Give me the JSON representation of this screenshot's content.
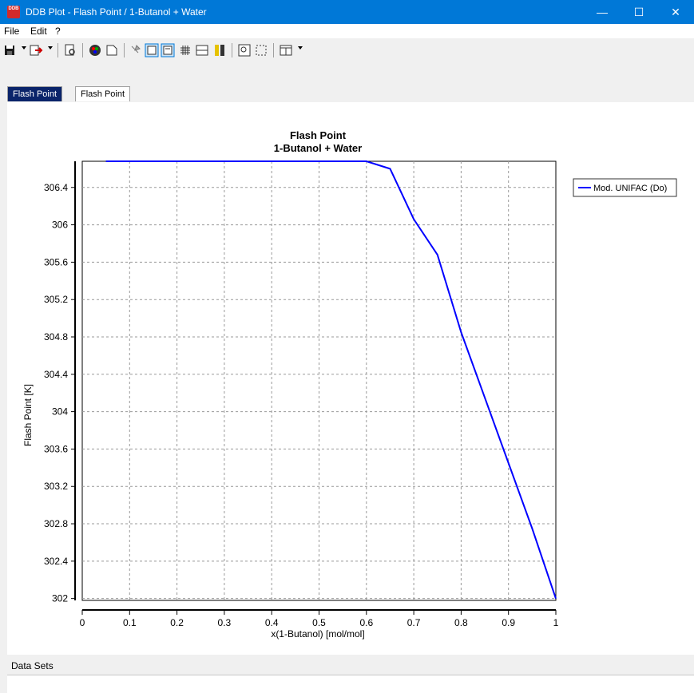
{
  "window": {
    "title": "DDB Plot - Flash Point / 1-Butanol + Water",
    "icon_text": "DDB"
  },
  "window_controls": {
    "minimize": "—",
    "maximize": "☐",
    "close": "✕"
  },
  "menu": [
    "File",
    "Edit",
    "?"
  ],
  "tabs": [
    {
      "label": "Flash Point",
      "active": true
    },
    {
      "label": "Flash Point",
      "active": false
    }
  ],
  "status_label": "Data Sets",
  "chart_data": {
    "type": "line",
    "title": "Flash Point",
    "subtitle": "1-Butanol + Water",
    "xlabel": "x(1-Butanol) [mol/mol]",
    "ylabel": "Flash Point [K]",
    "xlim": [
      0,
      1
    ],
    "ylim": [
      301.98,
      306.68
    ],
    "xticks": [
      "0",
      "0.1",
      "0.2",
      "0.3",
      "0.4",
      "0.5",
      "0.6",
      "0.7",
      "0.8",
      "0.9",
      "1"
    ],
    "yticks": [
      "302",
      "302.4",
      "302.8",
      "303.2",
      "303.6",
      "304",
      "304.4",
      "304.8",
      "305.2",
      "305.6",
      "306",
      "306.4"
    ],
    "grid": true,
    "legend_position": "top-right",
    "series": [
      {
        "name": "Mod. UNIFAC (Do)",
        "color": "#0000ff",
        "x": [
          0.05,
          0.1,
          0.2,
          0.3,
          0.4,
          0.5,
          0.6,
          0.65,
          0.7,
          0.75,
          0.8,
          0.85,
          0.9,
          0.95,
          1.0
        ],
        "y": [
          306.68,
          306.68,
          306.68,
          306.68,
          306.68,
          306.68,
          306.68,
          306.6,
          306.06,
          305.68,
          304.85,
          304.15,
          303.45,
          302.75,
          302.0
        ]
      }
    ]
  }
}
